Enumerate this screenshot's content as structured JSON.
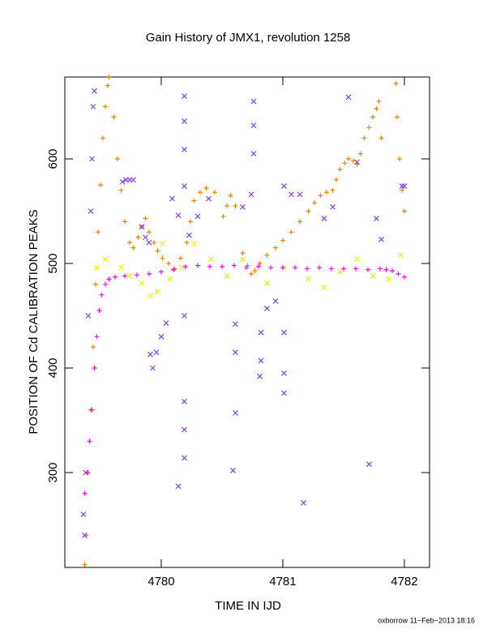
{
  "chart_data": {
    "type": "scatter",
    "title": "Gain History of JMX1, revolution 1258",
    "xlabel": "TIME IN IJD",
    "ylabel": "POSITION OF Cd CALIBRATION PEAKS",
    "footer": "oxborrow 11−Feb−2013 18:16",
    "xlim": [
      4779.207,
      4782.207
    ],
    "ylim": [
      209.3,
      678.3
    ],
    "xticks": [
      4780,
      4781,
      4782
    ],
    "yticks": [
      300,
      400,
      500,
      600
    ],
    "series": [
      {
        "color": "#f08000",
        "marker": "plus",
        "x": [
          4779.37,
          4779.38,
          4779.4,
          4779.42,
          4779.44,
          4779.46,
          4779.48,
          4779.5,
          4779.52,
          4779.54,
          4779.56,
          4779.57,
          4779.61,
          4779.64,
          4779.67,
          4779.7,
          4779.74,
          4779.77,
          4779.81,
          4779.84,
          4779.87,
          4779.9,
          4779.94,
          4779.97,
          4780.01,
          4780.06,
          4780.11,
          4780.16,
          4780.21,
          4780.24,
          4780.27,
          4780.32,
          4780.37,
          4780.44,
          4780.51,
          4780.54,
          4780.57,
          4780.61,
          4780.67,
          4780.71,
          4780.74,
          4780.77,
          4780.81,
          4780.87,
          4780.94,
          4781.0,
          4781.07,
          4781.14,
          4781.21,
          4781.26,
          4781.31,
          4781.36,
          4781.41,
          4781.44,
          4781.47,
          4781.51,
          4781.54,
          4781.58,
          4781.61,
          4781.64,
          4781.67,
          4781.71,
          4781.74,
          4781.77,
          4781.79,
          4781.81,
          4781.93,
          4781.94,
          4781.96,
          4781.98,
          4782.0
        ],
        "values": [
          212,
          240,
          300,
          360,
          420,
          480,
          530,
          575,
          620,
          650,
          670,
          678,
          640,
          600,
          570,
          540,
          520,
          515,
          525,
          535,
          543,
          530,
          520,
          512,
          505,
          500,
          495,
          505,
          520,
          540,
          560,
          568,
          572,
          568,
          545,
          555,
          565,
          555,
          510,
          498,
          490,
          493,
          500,
          508,
          515,
          522,
          530,
          540,
          550,
          558,
          565,
          568,
          570,
          580,
          590,
          596,
          600,
          598,
          595,
          605,
          620,
          630,
          640,
          648,
          655,
          620,
          672,
          640,
          600,
          570,
          550
        ]
      },
      {
        "color": "#7f3fff",
        "marker": "cross",
        "x": [
          4779.36,
          4779.37,
          4779.38,
          4779.4,
          4779.42,
          4779.43,
          4779.44,
          4779.45,
          4779.68,
          4779.71,
          4779.74,
          4779.77,
          4779.84,
          4779.87,
          4779.9,
          4779.91,
          4779.93,
          4779.96,
          4780.0,
          4780.04,
          4780.09,
          4780.14,
          4780.14,
          4780.19,
          4780.19,
          4780.19,
          4780.19,
          4780.19,
          4780.19,
          4780.19,
          4780.19,
          4780.23,
          4780.3,
          4780.39,
          4780.59,
          4780.61,
          4780.61,
          4780.61,
          4780.67,
          4780.74,
          4780.76,
          4780.76,
          4780.76,
          4780.81,
          4780.82,
          4780.82,
          4780.87,
          4780.94,
          4781.01,
          4781.01,
          4781.01,
          4781.01,
          4781.07,
          4781.14,
          4781.17,
          4781.34,
          4781.41,
          4781.54,
          4781.61,
          4781.71,
          4781.77,
          4781.81,
          4781.98,
          4782.0
        ],
        "values": [
          260,
          240,
          300,
          450,
          550,
          600,
          650,
          665,
          578,
          580,
          580,
          580,
          535,
          525,
          520,
          413,
          400,
          415,
          430,
          443,
          562,
          546,
          287,
          660,
          636,
          609,
          574,
          450,
          368,
          341,
          314,
          527,
          545,
          562,
          302,
          357,
          415,
          442,
          554,
          566,
          655,
          632,
          605,
          392,
          407,
          434,
          457,
          464,
          376,
          395,
          434,
          574,
          566,
          566,
          271,
          543,
          554,
          659,
          597,
          308,
          543,
          523,
          574,
          574
        ]
      },
      {
        "color": "#f0f000",
        "marker": "cross",
        "x": [
          4779.47,
          4779.54,
          4779.67,
          4779.74,
          4779.84,
          4779.91,
          4779.97,
          4780.01,
          4780.07,
          4780.17,
          4780.27,
          4780.41,
          4780.54,
          4780.67,
          4780.87,
          4781.01,
          4781.21,
          4781.34,
          4781.47,
          4781.61,
          4781.74,
          4781.87,
          4781.97
        ],
        "values": [
          496,
          504,
          496,
          488,
          481,
          469,
          473,
          519,
          485,
          496,
          519,
          504,
          488,
          504,
          481,
          496,
          485,
          477,
          492,
          504,
          488,
          485,
          508
        ]
      },
      {
        "color": "#ff00ff",
        "marker": "plus",
        "x": [
          4779.37,
          4779.39,
          4779.41,
          4779.43,
          4779.45,
          4779.47,
          4779.49,
          4779.51,
          4779.54,
          4779.57,
          4779.62,
          4779.7,
          4779.8,
          4779.9,
          4780.0,
          4780.1,
          4780.2,
          4780.3,
          4780.4,
          4780.5,
          4780.6,
          4780.7,
          4780.8,
          4780.9,
          4781.0,
          4781.1,
          4781.2,
          4781.3,
          4781.4,
          4781.5,
          4781.6,
          4781.7,
          4781.8,
          4781.85,
          4781.9,
          4781.95,
          4782.0
        ],
        "values": [
          280,
          300,
          330,
          360,
          400,
          430,
          455,
          470,
          480,
          485,
          487,
          488,
          489,
          490,
          492,
          494,
          497,
          498,
          497,
          497,
          498,
          496,
          497,
          496,
          496,
          496,
          495,
          496,
          495,
          495,
          495,
          494,
          495,
          494,
          493,
          490,
          487
        ]
      }
    ]
  }
}
